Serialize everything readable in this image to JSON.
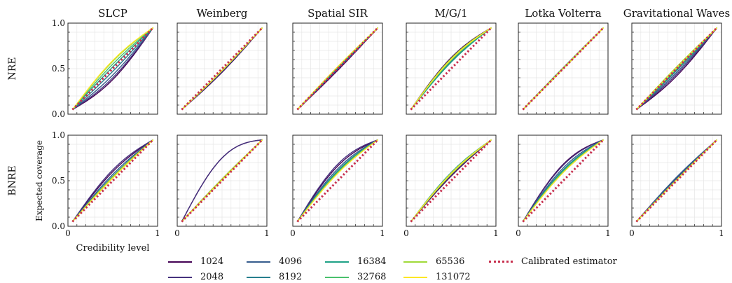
{
  "columns": [
    "SLCP",
    "Weinberg",
    "Spatial SIR",
    "M/G/1",
    "Lotka Volterra",
    "Gravitational Waves"
  ],
  "rows": [
    "NRE",
    "BNRE"
  ],
  "xlabel": "Credibility level",
  "ylabel": "Expected coverage",
  "yticks": [
    "0.0",
    "0.5",
    "1.0"
  ],
  "xticks": [
    "0",
    "1"
  ],
  "legend": {
    "items": [
      {
        "label": "1024",
        "color": "#440154"
      },
      {
        "label": "2048",
        "color": "#46327e"
      },
      {
        "label": "4096",
        "color": "#365c8d"
      },
      {
        "label": "8192",
        "color": "#277f8e"
      },
      {
        "label": "16384",
        "color": "#1fa187"
      },
      {
        "label": "32768",
        "color": "#4ac16d"
      },
      {
        "label": "65536",
        "color": "#a0da39"
      },
      {
        "label": "131072",
        "color": "#fde725"
      }
    ],
    "calibrated": {
      "label": "Calibrated estimator",
      "color": "#c8304f"
    }
  },
  "chart_data": {
    "type": "line",
    "x": [
      0.05,
      0.95
    ],
    "xlim": [
      0,
      1
    ],
    "ylim": [
      0,
      1
    ],
    "grid": true,
    "series_names": [
      "1024",
      "2048",
      "4096",
      "8192",
      "16384",
      "32768",
      "65536",
      "131072"
    ],
    "panels": {
      "NRE": {
        "SLCP": [
          -0.12,
          -0.1,
          -0.07,
          -0.03,
          0.02,
          0.05,
          0.08,
          0.09
        ],
        "Weinberg": [
          -0.04,
          -0.03,
          -0.03,
          -0.02,
          -0.02,
          -0.02,
          -0.02,
          -0.02
        ],
        "Spatial SIR": [
          -0.02,
          -0.01,
          0.0,
          0.01,
          0.01,
          0.02,
          0.02,
          0.02
        ],
        "M/G/1": [
          0.12,
          0.1,
          0.08,
          0.1,
          0.07,
          0.09,
          0.11,
          0.1
        ],
        "Lotka Volterra": [
          0.0,
          0.0,
          0.0,
          0.01,
          0.0,
          0.01,
          0.0,
          0.0
        ],
        "Gravitational Waves": [
          -0.08,
          -0.06,
          -0.04,
          -0.02,
          -0.01,
          0.0,
          0.02,
          0.01
        ]
      },
      "BNRE": {
        "SLCP": [
          0.1,
          0.12,
          0.07,
          0.05,
          0.04,
          0.03,
          0.04,
          0.03
        ],
        "Weinberg": [
          0.25,
          0.25,
          0.02,
          0.01,
          0.01,
          0.01,
          0.02,
          0.01
        ],
        "Spatial SIR": [
          0.16,
          0.18,
          0.13,
          0.11,
          0.1,
          0.09,
          0.08,
          0.08
        ],
        "M/G/1": [
          0.05,
          0.06,
          0.08,
          0.07,
          0.09,
          0.08,
          0.07,
          0.08
        ],
        "Lotka Volterra": [
          0.18,
          0.17,
          0.14,
          0.12,
          0.11,
          0.1,
          0.09,
          0.09
        ],
        "Gravitational Waves": [
          0.02,
          0.03,
          0.04,
          0.02,
          0.01,
          0.01,
          0.01,
          0.01
        ]
      }
    }
  }
}
